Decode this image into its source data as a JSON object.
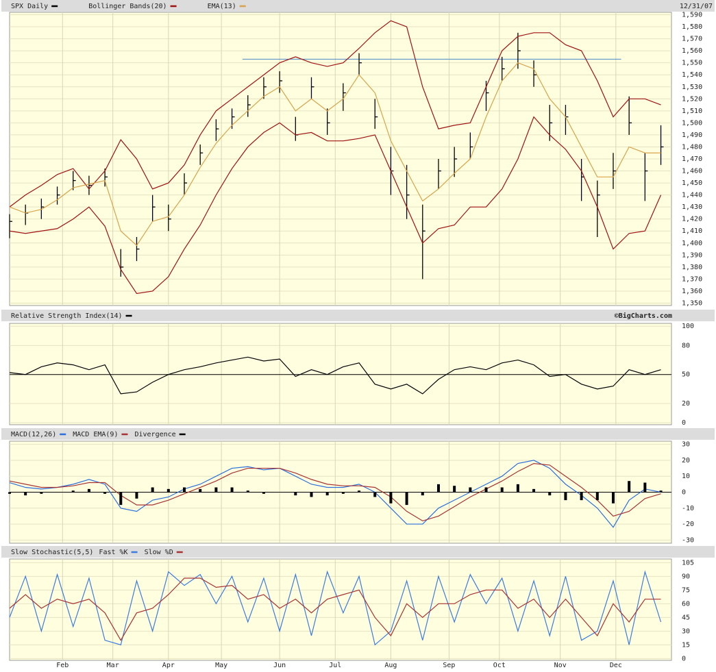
{
  "chart_data": [
    {
      "type": "hlc",
      "date": "12/31/07",
      "x": [
        0,
        6,
        12,
        18,
        24,
        30,
        36,
        42,
        48,
        54,
        60,
        66,
        72,
        78,
        84,
        90,
        96,
        102,
        108,
        114,
        120,
        126,
        132,
        138,
        144,
        150,
        156,
        162,
        168,
        174,
        180,
        186,
        192,
        198,
        204,
        210,
        216,
        222,
        228,
        234,
        240,
        246
      ],
      "xlim": [
        0,
        250
      ],
      "xticks": [
        {
          "value": 20,
          "label": "Feb"
        },
        {
          "value": 39,
          "label": "Mar"
        },
        {
          "value": 60,
          "label": "Apr"
        },
        {
          "value": 80,
          "label": "May"
        },
        {
          "value": 102,
          "label": "Jun"
        },
        {
          "value": 123,
          "label": "Jul"
        },
        {
          "value": 144,
          "label": "Aug"
        },
        {
          "value": 166,
          "label": "Sep"
        },
        {
          "value": 185,
          "label": "Oct"
        },
        {
          "value": 208,
          "label": "Nov"
        },
        {
          "value": 229,
          "label": "Dec"
        }
      ],
      "ylim": [
        1348,
        1592
      ],
      "yticks": [
        {
          "value": 1350,
          "label": "1,350"
        },
        {
          "value": 1360,
          "label": "1,360"
        },
        {
          "value": 1370,
          "label": "1,370"
        },
        {
          "value": 1380,
          "label": "1,380"
        },
        {
          "value": 1390,
          "label": "1,390"
        },
        {
          "value": 1400,
          "label": "1,400"
        },
        {
          "value": 1410,
          "label": "1,410"
        },
        {
          "value": 1420,
          "label": "1,420"
        },
        {
          "value": 1430,
          "label": "1,430"
        },
        {
          "value": 1440,
          "label": "1,440"
        },
        {
          "value": 1450,
          "label": "1,450"
        },
        {
          "value": 1460,
          "label": "1,460"
        },
        {
          "value": 1470,
          "label": "1,470"
        },
        {
          "value": 1480,
          "label": "1,480"
        },
        {
          "value": 1490,
          "label": "1,490"
        },
        {
          "value": 1500,
          "label": "1,500"
        },
        {
          "value": 1510,
          "label": "1,510"
        },
        {
          "value": 1520,
          "label": "1,520"
        },
        {
          "value": 1530,
          "label": "1,530"
        },
        {
          "value": 1540,
          "label": "1,540"
        },
        {
          "value": 1550,
          "label": "1,550"
        },
        {
          "value": 1560,
          "label": "1,560"
        },
        {
          "value": 1570,
          "label": "1,570"
        },
        {
          "value": 1580,
          "label": "1,580"
        },
        {
          "value": 1590,
          "label": "1,590"
        }
      ],
      "grid": true,
      "resistance": {
        "value": 1553,
        "x": [
          88,
          231
        ],
        "color": "#4a86c8"
      },
      "series": [
        {
          "name": "SPX Daily",
          "color": "#000000",
          "kind": "hlc",
          "high": [
            1424,
            1432,
            1437,
            1447,
            1460,
            1456,
            1462,
            1395,
            1405,
            1440,
            1432,
            1458,
            1482,
            1503,
            1512,
            1523,
            1538,
            1543,
            1505,
            1538,
            1512,
            1533,
            1558,
            1520,
            1480,
            1465,
            1432,
            1470,
            1480,
            1492,
            1535,
            1555,
            1575,
            1552,
            1515,
            1515,
            1470,
            1452,
            1475,
            1522,
            1475,
            1498
          ],
          "low": [
            1404,
            1415,
            1420,
            1432,
            1444,
            1440,
            1447,
            1372,
            1385,
            1418,
            1410,
            1440,
            1465,
            1485,
            1495,
            1505,
            1520,
            1525,
            1485,
            1520,
            1490,
            1510,
            1540,
            1495,
            1440,
            1420,
            1370,
            1445,
            1455,
            1470,
            1510,
            1535,
            1545,
            1530,
            1485,
            1490,
            1435,
            1405,
            1445,
            1490,
            1435,
            1465
          ],
          "close": [
            1418,
            1425,
            1430,
            1440,
            1452,
            1448,
            1455,
            1380,
            1395,
            1430,
            1420,
            1450,
            1475,
            1495,
            1505,
            1515,
            1530,
            1535,
            1490,
            1530,
            1500,
            1525,
            1550,
            1505,
            1460,
            1440,
            1410,
            1460,
            1470,
            1480,
            1525,
            1545,
            1560,
            1540,
            1500,
            1505,
            1455,
            1440,
            1460,
            1500,
            1460,
            1480
          ]
        },
        {
          "name": "Bollinger Bands(20)",
          "color": "#a01010",
          "kind": "band",
          "upper": [
            1430,
            1440,
            1448,
            1457,
            1462,
            1445,
            1460,
            1486,
            1470,
            1445,
            1450,
            1465,
            1490,
            1510,
            1520,
            1530,
            1540,
            1550,
            1555,
            1550,
            1547,
            1550,
            1562,
            1575,
            1585,
            1580,
            1530,
            1495,
            1498,
            1500,
            1530,
            1560,
            1572,
            1575,
            1575,
            1565,
            1560,
            1535,
            1505,
            1520,
            1520,
            1515
          ],
          "lower": [
            1410,
            1408,
            1410,
            1412,
            1420,
            1430,
            1414,
            1378,
            1358,
            1360,
            1372,
            1395,
            1415,
            1440,
            1462,
            1480,
            1492,
            1500,
            1490,
            1492,
            1485,
            1485,
            1487,
            1490,
            1460,
            1430,
            1400,
            1412,
            1415,
            1430,
            1430,
            1445,
            1470,
            1505,
            1490,
            1478,
            1460,
            1430,
            1395,
            1408,
            1410,
            1440
          ]
        },
        {
          "name": "EMA(13)",
          "color": "#d9a24a",
          "kind": "line",
          "values": [
            1430,
            1425,
            1428,
            1436,
            1446,
            1449,
            1452,
            1410,
            1398,
            1418,
            1422,
            1440,
            1463,
            1483,
            1498,
            1510,
            1522,
            1530,
            1510,
            1520,
            1510,
            1520,
            1540,
            1525,
            1485,
            1460,
            1435,
            1445,
            1458,
            1470,
            1505,
            1535,
            1550,
            1545,
            1520,
            1505,
            1480,
            1455,
            1455,
            1480,
            1475,
            1475
          ]
        }
      ]
    },
    {
      "type": "line",
      "credit": "©BigCharts.com",
      "ylim": [
        -2,
        103
      ],
      "yticks": [
        0,
        20,
        50,
        80,
        100
      ],
      "grid": true,
      "baseline": 50,
      "series": [
        {
          "name": "Relative Strength Index(14)",
          "color": "#000000",
          "kind": "line",
          "values": [
            52,
            50,
            58,
            62,
            60,
            55,
            60,
            30,
            32,
            42,
            50,
            55,
            58,
            62,
            65,
            68,
            64,
            66,
            48,
            55,
            50,
            58,
            62,
            40,
            35,
            40,
            30,
            45,
            55,
            58,
            55,
            62,
            65,
            60,
            48,
            50,
            40,
            35,
            38,
            55,
            50,
            55
          ]
        }
      ]
    },
    {
      "type": "line",
      "ylim": [
        -32,
        32
      ],
      "yticks": [
        -30,
        -20,
        -10,
        0,
        10,
        20,
        30
      ],
      "grid": true,
      "baseline": 0,
      "series": [
        {
          "name": "MACD(12,26)",
          "color": "#2a6fdb",
          "kind": "line",
          "values": [
            6,
            3,
            2,
            3,
            5,
            8,
            5,
            -10,
            -12,
            -5,
            -3,
            2,
            5,
            10,
            15,
            16,
            14,
            15,
            10,
            5,
            3,
            3,
            5,
            0,
            -10,
            -20,
            -20,
            -10,
            -5,
            0,
            5,
            10,
            18,
            20,
            15,
            5,
            -2,
            -10,
            -22,
            -5,
            2,
            0
          ]
        },
        {
          "name": "MACD EMA(9)",
          "color": "#a83232",
          "kind": "line",
          "values": [
            7,
            5,
            3,
            3,
            4,
            6,
            6,
            -2,
            -8,
            -8,
            -5,
            -1,
            3,
            7,
            12,
            15,
            15,
            15,
            12,
            8,
            5,
            4,
            4,
            3,
            -3,
            -12,
            -18,
            -15,
            -9,
            -3,
            2,
            7,
            13,
            18,
            17,
            10,
            3,
            -5,
            -15,
            -12,
            -4,
            -1
          ]
        },
        {
          "name": "Divergence",
          "color": "#000000",
          "kind": "bars",
          "values": [
            -1,
            -2,
            -1,
            0,
            1,
            2,
            -1,
            -8,
            -4,
            3,
            2,
            3,
            2,
            3,
            3,
            1,
            -1,
            0,
            -2,
            -3,
            -2,
            -1,
            1,
            -3,
            -7,
            -8,
            -2,
            5,
            4,
            3,
            3,
            3,
            5,
            2,
            -2,
            -5,
            -5,
            -5,
            -7,
            7,
            6,
            1
          ]
        }
      ]
    },
    {
      "type": "line",
      "title": "Slow Stochastic(5,5)",
      "ylim": [
        -2,
        109
      ],
      "yticks": [
        0,
        15,
        30,
        45,
        60,
        75,
        90,
        105
      ],
      "grid": true,
      "series": [
        {
          "name": "Fast %K",
          "color": "#3a7be0",
          "kind": "line",
          "values": [
            45,
            90,
            30,
            92,
            35,
            88,
            20,
            15,
            85,
            30,
            95,
            80,
            92,
            60,
            90,
            40,
            88,
            30,
            92,
            25,
            95,
            50,
            90,
            15,
            30,
            85,
            20,
            90,
            40,
            92,
            60,
            88,
            30,
            85,
            25,
            90,
            20,
            30,
            85,
            15,
            95,
            40
          ]
        },
        {
          "name": "Slow %D",
          "color": "#a83232",
          "kind": "line",
          "values": [
            55,
            70,
            55,
            65,
            60,
            65,
            50,
            20,
            50,
            55,
            70,
            88,
            88,
            78,
            80,
            65,
            70,
            55,
            65,
            50,
            65,
            70,
            75,
            45,
            25,
            60,
            45,
            60,
            60,
            70,
            75,
            75,
            55,
            65,
            45,
            65,
            45,
            25,
            60,
            40,
            65,
            65
          ]
        }
      ]
    }
  ]
}
